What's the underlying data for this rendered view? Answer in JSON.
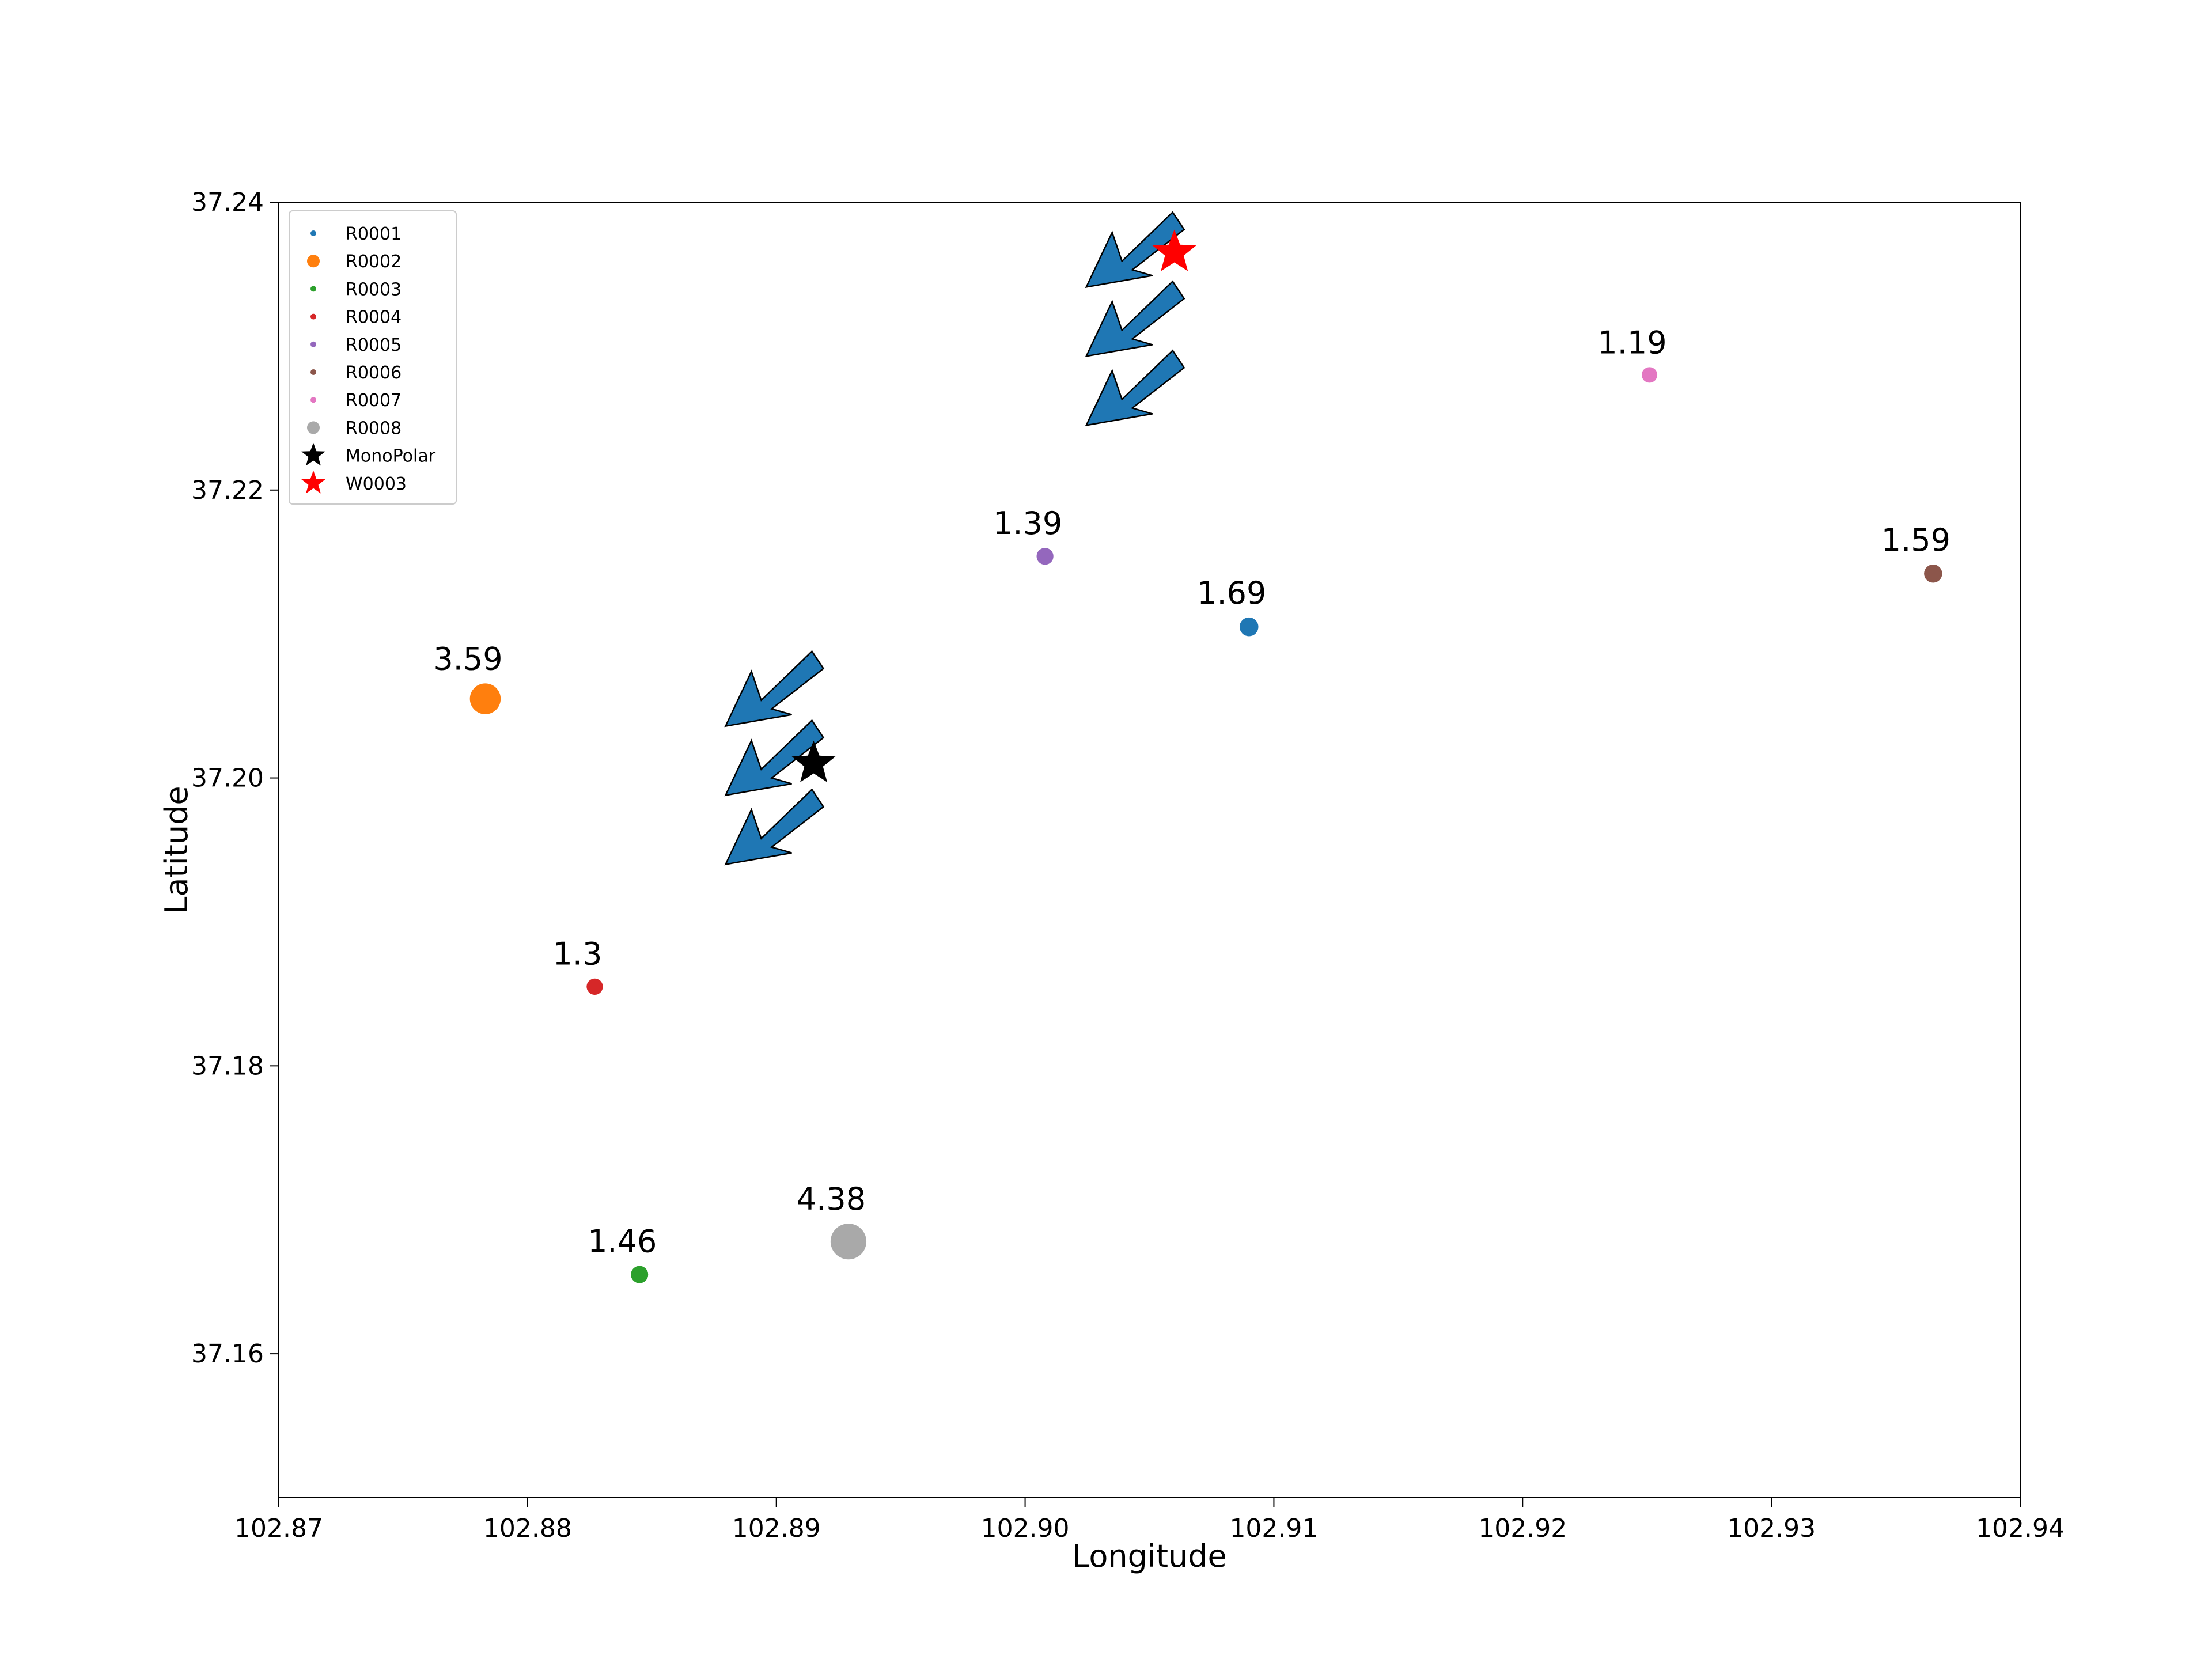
{
  "chart_data": {
    "type": "scatter",
    "xlabel": "Longitude",
    "ylabel": "Latitude",
    "xlim": [
      102.87,
      102.94
    ],
    "ylim": [
      37.15,
      37.24
    ],
    "xticks": [
      102.87,
      102.88,
      102.89,
      102.9,
      102.91,
      102.92,
      102.93,
      102.94
    ],
    "xtick_labels": [
      "102.87",
      "102.88",
      "102.89",
      "102.90",
      "102.91",
      "102.92",
      "102.93",
      "102.94"
    ],
    "yticks": [
      37.16,
      37.18,
      37.2,
      37.22,
      37.24
    ],
    "ytick_labels": [
      "37.16",
      "37.18",
      "37.20",
      "37.22",
      "37.24"
    ],
    "grid": false,
    "legend_position": "top-left",
    "series": [
      {
        "name": "R0001",
        "marker": "circle",
        "color": "#1f77b4",
        "x": 102.909,
        "y": 37.2105,
        "value": 1.69,
        "label": "1.69"
      },
      {
        "name": "R0002",
        "marker": "circle",
        "color": "#ff7f0e",
        "x": 102.8783,
        "y": 37.2055,
        "value": 3.59,
        "label": "3.59"
      },
      {
        "name": "R0003",
        "marker": "circle",
        "color": "#2ca02c",
        "x": 102.8845,
        "y": 37.1655,
        "value": 1.46,
        "label": "1.46"
      },
      {
        "name": "R0004",
        "marker": "circle",
        "color": "#d62728",
        "x": 102.8827,
        "y": 37.1855,
        "value": 1.3,
        "label": "1.3"
      },
      {
        "name": "R0005",
        "marker": "circle",
        "color": "#9467bd",
        "x": 102.9008,
        "y": 37.2154,
        "value": 1.39,
        "label": "1.39"
      },
      {
        "name": "R0006",
        "marker": "circle",
        "color": "#8c564b",
        "x": 102.9365,
        "y": 37.2142,
        "value": 1.59,
        "label": "1.59"
      },
      {
        "name": "R0007",
        "marker": "circle",
        "color": "#e377c2",
        "x": 102.9251,
        "y": 37.228,
        "value": 1.19,
        "label": "1.19"
      },
      {
        "name": "R0008",
        "marker": "circle",
        "color": "#a9a9a9",
        "x": 102.8929,
        "y": 37.1678,
        "value": 4.38,
        "label": "4.38"
      },
      {
        "name": "MonoPolar",
        "marker": "star",
        "color": "#000000",
        "x": 102.8915,
        "y": 37.201
      },
      {
        "name": "W0003",
        "marker": "star",
        "color": "#ff0000",
        "x": 102.906,
        "y": 37.2365
      }
    ],
    "wind_arrows": [
      {
        "x": 102.889,
        "y": 37.201,
        "direction": "southwest",
        "color": "#1f77b4"
      },
      {
        "x": 102.9035,
        "y": 37.2315,
        "direction": "southwest",
        "color": "#1f77b4"
      }
    ]
  }
}
